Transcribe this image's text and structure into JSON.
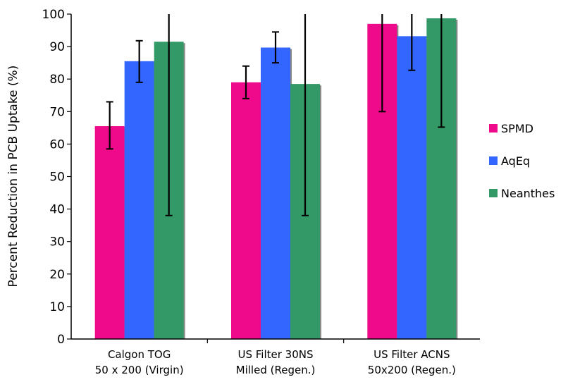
{
  "chart_data": {
    "type": "bar",
    "title": "",
    "xlabel": "",
    "ylabel": "Percent Reduction in PCB Uptake (%)",
    "ylim": [
      0,
      100
    ],
    "yticks": [
      0,
      10,
      20,
      30,
      40,
      50,
      60,
      70,
      80,
      90,
      100
    ],
    "categories": [
      [
        "Calgon TOG",
        "50 x 200 (Virgin)"
      ],
      [
        "US Filter 30NS",
        "Milled (Regen.)"
      ],
      [
        "US Filter ACNS",
        "50x200 (Regen.)"
      ]
    ],
    "series": [
      {
        "name": "SPMD",
        "color": "#EE0A8A",
        "values": [
          65.5,
          79,
          97
        ],
        "error_low": [
          58.5,
          74,
          70
        ],
        "error_high": [
          73,
          84,
          100
        ]
      },
      {
        "name": "AqEq",
        "color": "#3366FF",
        "values": [
          85.5,
          89.7,
          93.2
        ],
        "error_low": [
          79,
          85,
          82.7
        ],
        "error_high": [
          91.8,
          94.5,
          100
        ]
      },
      {
        "name": "Neanthes",
        "color": "#339966",
        "values": [
          91.5,
          78.5,
          98.7
        ],
        "error_low": [
          38,
          38,
          65.2
        ],
        "error_high": [
          100,
          100,
          100
        ]
      }
    ],
    "legend_position": "right",
    "grid": false
  }
}
